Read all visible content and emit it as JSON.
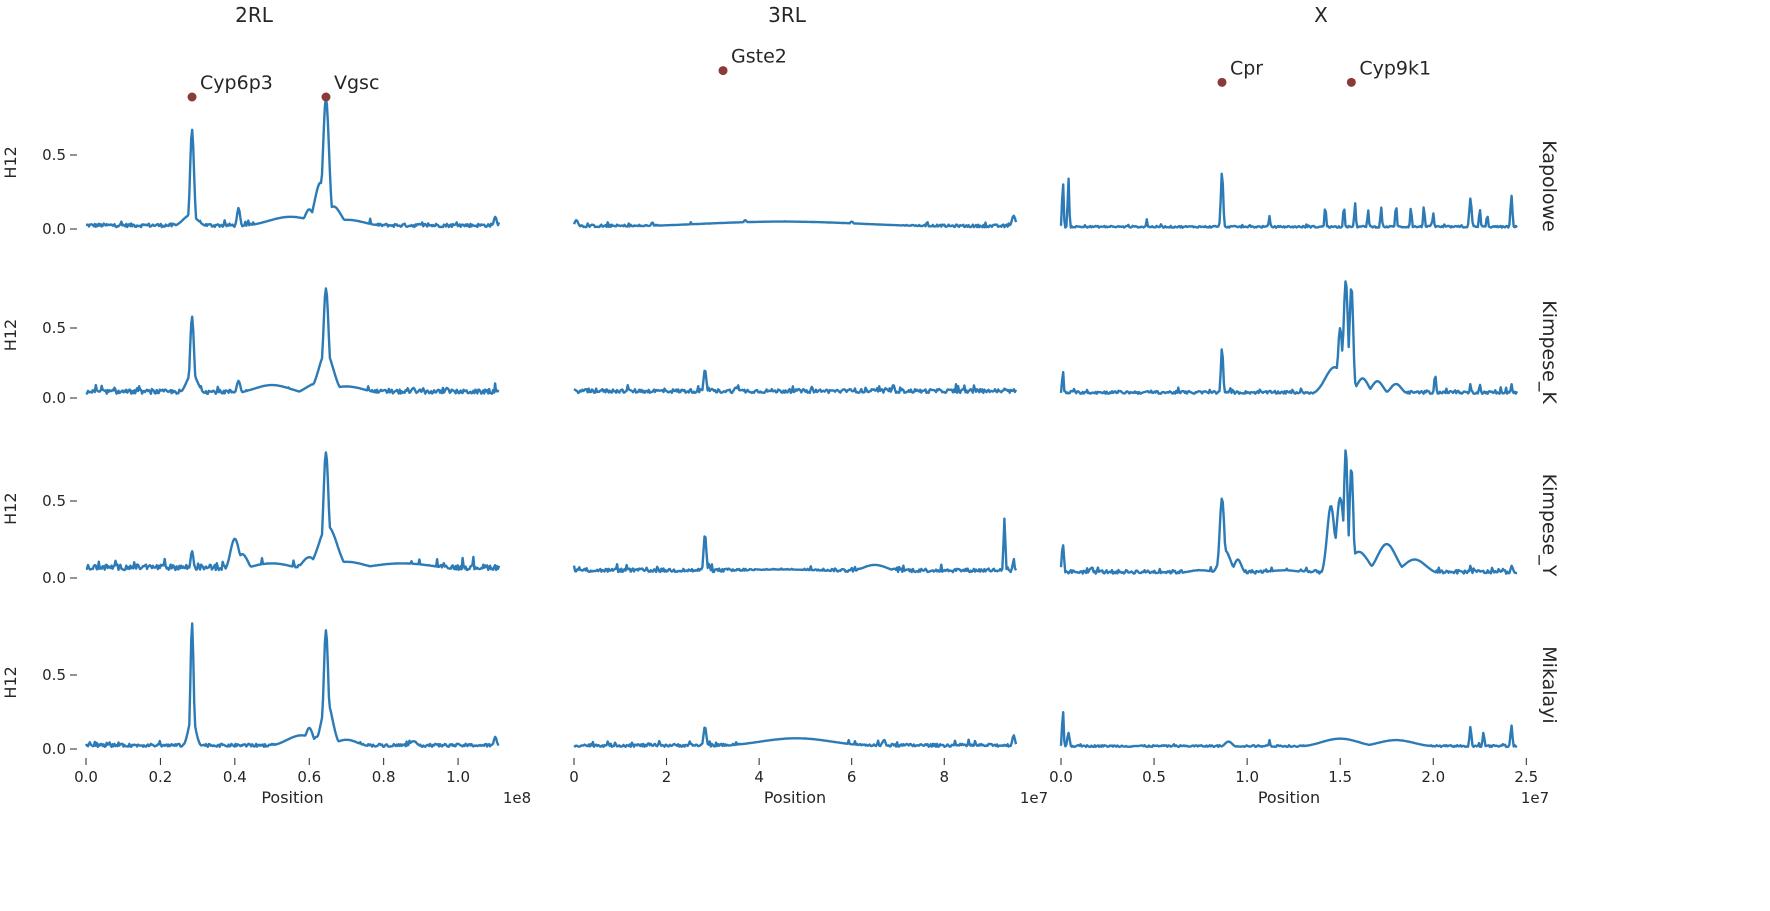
{
  "chart_data": {
    "type": "line",
    "layout": "facet-grid",
    "line_color": "#2c7bb6",
    "annotation_color": "#8b3a3a",
    "ylabel": "H12",
    "y_ticks": [
      "0.0",
      "0.5"
    ],
    "ylim": [
      0,
      0.9
    ],
    "columns": [
      {
        "title": "2RL",
        "xlabel": "Position",
        "offset_label": "1e8",
        "xlim": [
          0,
          1.11
        ],
        "x_ticks": [
          0,
          0.2,
          0.4,
          0.6,
          0.8,
          1.0
        ],
        "x_tick_labels": [
          "0.0",
          "0.2",
          "0.4",
          "0.6",
          "0.8",
          "1.0"
        ],
        "genes": [
          {
            "name": "Cyp6p3",
            "x": 0.285,
            "level": 0.95
          },
          {
            "name": "Vgsc",
            "x": 0.645,
            "level": 0.95
          }
        ]
      },
      {
        "title": "3RL",
        "xlabel": "Position",
        "offset_label": "1e7",
        "xlim": [
          0,
          9.55
        ],
        "x_ticks": [
          0,
          2,
          4,
          6,
          8
        ],
        "x_tick_labels": [
          "0",
          "2",
          "4",
          "6",
          "8"
        ],
        "genes": [
          {
            "name": "Gste2",
            "x": 3.22,
            "level": 1.04
          }
        ]
      },
      {
        "title": "X",
        "xlabel": "Position",
        "offset_label": "1e7",
        "xlim": [
          0,
          2.45
        ],
        "x_ticks": [
          0,
          0.5,
          1.0,
          1.5,
          2.0,
          2.5
        ],
        "x_tick_labels": [
          "0.0",
          "0.5",
          "1.0",
          "1.5",
          "2.0",
          "2.5"
        ],
        "genes": [
          {
            "name": "Cpr",
            "x": 0.865,
            "level": 1.0
          },
          {
            "name": "Cyp9k1",
            "x": 1.56,
            "level": 1.0
          }
        ]
      }
    ],
    "rows": [
      {
        "label": "Kapolowe",
        "panels": [
          {
            "baseline": 0.025,
            "noise": 0.012,
            "peaks": [
              [
                0.285,
                0.66,
                0.005
              ],
              [
                0.28,
                0.08,
                0.02
              ],
              [
                0.41,
                0.13,
                0.004
              ],
              [
                0.55,
                0.07,
                0.06
              ],
              [
                0.6,
                0.12,
                0.012
              ],
              [
                0.622,
                0.22,
                0.008
              ],
              [
                0.645,
                0.87,
                0.008
              ],
              [
                0.63,
                0.3,
                0.015
              ],
              [
                0.665,
                0.14,
                0.02
              ],
              [
                0.7,
                0.05,
                0.05
              ],
              [
                1.1,
                0.07,
                0.004
              ]
            ]
          },
          {
            "baseline": 0.02,
            "noise": 0.01,
            "peaks": [
              [
                0.05,
                0.05,
                0.04
              ],
              [
                4.5,
                0.04,
                1.8
              ],
              [
                3.7,
                0.05,
                0.05
              ],
              [
                6.0,
                0.04,
                0.05
              ],
              [
                9.5,
                0.08,
                0.04
              ]
            ]
          },
          {
            "baseline": 0.015,
            "noise": 0.006,
            "peaks": [
              [
                0.01,
                0.32,
                0.004
              ],
              [
                0.04,
                0.34,
                0.004
              ],
              [
                0.865,
                0.38,
                0.006
              ],
              [
                0.46,
                0.06,
                0.003
              ],
              [
                1.12,
                0.08,
                0.004
              ],
              [
                1.42,
                0.15,
                0.004
              ],
              [
                1.52,
                0.15,
                0.004
              ],
              [
                1.58,
                0.17,
                0.004
              ],
              [
                1.65,
                0.12,
                0.004
              ],
              [
                1.72,
                0.14,
                0.004
              ],
              [
                1.8,
                0.16,
                0.004
              ],
              [
                1.88,
                0.14,
                0.004
              ],
              [
                1.95,
                0.15,
                0.004
              ],
              [
                2.0,
                0.1,
                0.004
              ],
              [
                2.2,
                0.2,
                0.006
              ],
              [
                2.25,
                0.13,
                0.004
              ],
              [
                2.29,
                0.09,
                0.004
              ],
              [
                2.42,
                0.22,
                0.005
              ]
            ]
          }
        ]
      },
      {
        "label": "Kimpese_K",
        "panels": [
          {
            "baseline": 0.045,
            "noise": 0.015,
            "peaks": [
              [
                0.285,
                0.56,
                0.005
              ],
              [
                0.285,
                0.15,
                0.015
              ],
              [
                0.41,
                0.1,
                0.005
              ],
              [
                0.5,
                0.07,
                0.05
              ],
              [
                0.62,
                0.08,
                0.03
              ],
              [
                0.645,
                0.76,
                0.007
              ],
              [
                0.645,
                0.3,
                0.02
              ],
              [
                0.7,
                0.06,
                0.05
              ],
              [
                0.88,
                0.05,
                0.005
              ],
              [
                0.97,
                0.05,
                0.005
              ]
            ]
          },
          {
            "baseline": 0.05,
            "noise": 0.014,
            "peaks": [
              [
                2.83,
                0.18,
                0.03
              ],
              [
                3.5,
                0.05,
                0.05
              ],
              [
                6.9,
                0.07,
                0.03
              ]
            ]
          },
          {
            "baseline": 0.04,
            "noise": 0.01,
            "peaks": [
              [
                0.01,
                0.18,
                0.004
              ],
              [
                0.865,
                0.34,
                0.006
              ],
              [
                1.47,
                0.2,
                0.05
              ],
              [
                1.5,
                0.48,
                0.012
              ],
              [
                1.53,
                0.82,
                0.012
              ],
              [
                1.56,
                0.78,
                0.01
              ],
              [
                1.62,
                0.12,
                0.03
              ],
              [
                1.7,
                0.1,
                0.03
              ],
              [
                1.8,
                0.08,
                0.03
              ],
              [
                2.01,
                0.16,
                0.004
              ],
              [
                2.2,
                0.08,
                0.004
              ],
              [
                2.25,
                0.08,
                0.004
              ],
              [
                2.42,
                0.08,
                0.004
              ]
            ]
          }
        ]
      },
      {
        "label": "Kimpese_Y",
        "panels": [
          {
            "baseline": 0.07,
            "noise": 0.018,
            "peaks": [
              [
                0.285,
                0.14,
                0.004
              ],
              [
                0.4,
                0.22,
                0.012
              ],
              [
                0.42,
                0.12,
                0.015
              ],
              [
                0.5,
                0.06,
                0.06
              ],
              [
                0.6,
                0.1,
                0.02
              ],
              [
                0.645,
                0.78,
                0.007
              ],
              [
                0.65,
                0.3,
                0.025
              ],
              [
                0.7,
                0.07,
                0.06
              ],
              [
                0.85,
                0.06,
                0.1
              ]
            ]
          },
          {
            "baseline": 0.05,
            "noise": 0.012,
            "peaks": [
              [
                2.83,
                0.26,
                0.03
              ],
              [
                4.5,
                0.03,
                1.2
              ],
              [
                6.5,
                0.06,
                0.3
              ],
              [
                9.3,
                0.36,
                0.02
              ],
              [
                9.5,
                0.1,
                0.02
              ]
            ]
          },
          {
            "baseline": 0.04,
            "noise": 0.012,
            "peaks": [
              [
                0.01,
                0.2,
                0.006
              ],
              [
                0.75,
                0.03,
                0.08
              ],
              [
                0.865,
                0.5,
                0.012
              ],
              [
                0.88,
                0.16,
                0.03
              ],
              [
                0.95,
                0.1,
                0.02
              ],
              [
                1.2,
                0.03,
                0.1
              ],
              [
                1.45,
                0.45,
                0.02
              ],
              [
                1.5,
                0.5,
                0.02
              ],
              [
                1.53,
                0.82,
                0.01
              ],
              [
                1.56,
                0.7,
                0.01
              ],
              [
                1.6,
                0.15,
                0.05
              ],
              [
                1.75,
                0.2,
                0.05
              ],
              [
                1.9,
                0.1,
                0.06
              ],
              [
                2.1,
                0.02,
                0.01
              ],
              [
                2.2,
                0.06,
                0.005
              ],
              [
                2.42,
                0.06,
                0.005
              ]
            ]
          }
        ]
      },
      {
        "label": "Mikalayi",
        "panels": [
          {
            "baseline": 0.025,
            "noise": 0.01,
            "peaks": [
              [
                0.285,
                0.84,
                0.004
              ],
              [
                0.285,
                0.2,
                0.01
              ],
              [
                0.58,
                0.08,
                0.04
              ],
              [
                0.6,
                0.13,
                0.01
              ],
              [
                0.62,
                0.07,
                0.01
              ],
              [
                0.645,
                0.79,
                0.006
              ],
              [
                0.648,
                0.3,
                0.015
              ],
              [
                0.7,
                0.05,
                0.03
              ],
              [
                0.88,
                0.04,
                0.01
              ],
              [
                1.1,
                0.07,
                0.004
              ]
            ]
          },
          {
            "baseline": 0.025,
            "noise": 0.01,
            "peaks": [
              [
                2.83,
                0.14,
                0.03
              ],
              [
                4.8,
                0.06,
                0.8
              ],
              [
                6.7,
                0.05,
                0.03
              ],
              [
                9.5,
                0.08,
                0.03
              ]
            ]
          },
          {
            "baseline": 0.02,
            "noise": 0.006,
            "peaks": [
              [
                0.01,
                0.26,
                0.004
              ],
              [
                0.04,
                0.1,
                0.006
              ],
              [
                0.9,
                0.04,
                0.02
              ],
              [
                1.12,
                0.05,
                0.004
              ],
              [
                1.5,
                0.06,
                0.1
              ],
              [
                1.8,
                0.05,
                0.1
              ],
              [
                2.2,
                0.14,
                0.005
              ],
              [
                2.27,
                0.1,
                0.005
              ],
              [
                2.42,
                0.15,
                0.005
              ]
            ]
          }
        ]
      }
    ]
  }
}
